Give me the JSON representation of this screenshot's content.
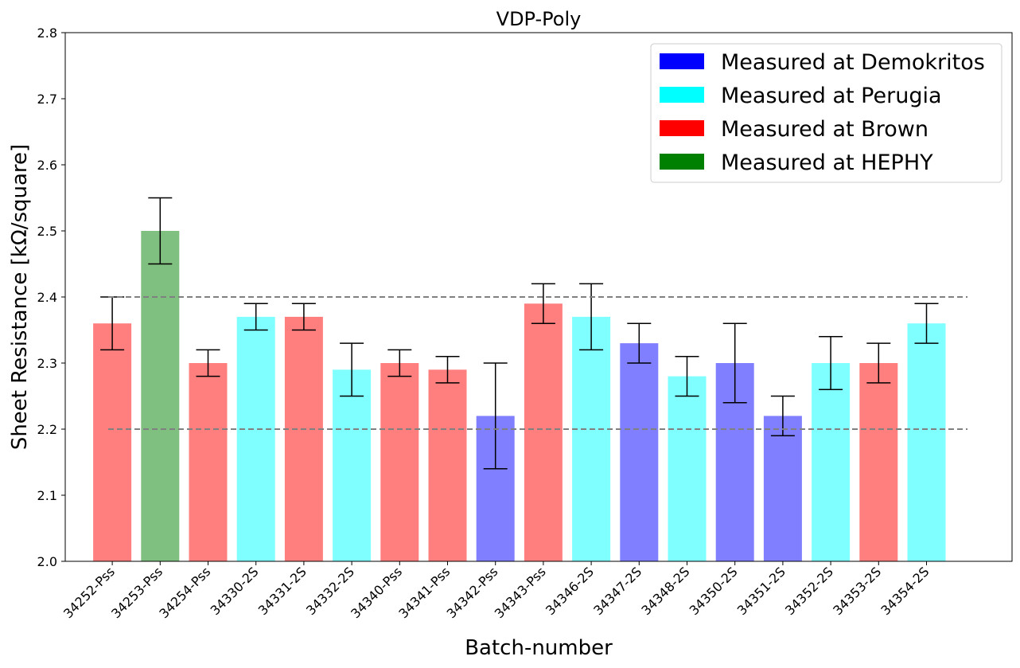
{
  "chart_data": {
    "type": "bar",
    "title": "VDP-Poly",
    "xlabel": "Batch-number",
    "ylabel": "Sheet Resistance [kΩ/square]",
    "ylim": [
      2.0,
      2.8
    ],
    "yticks": [
      "2.0",
      "2.1",
      "2.2",
      "2.3",
      "2.4",
      "2.5",
      "2.6",
      "2.7",
      "2.8"
    ],
    "categories": [
      "34252-Pss",
      "34253-Pss",
      "34254-Pss",
      "34330-2S",
      "34331-2S",
      "34332-2S",
      "34340-Pss",
      "34341-Pss",
      "34342-Pss",
      "34343-Pss",
      "34346-2S",
      "34347-2S",
      "34348-2S",
      "34350-2S",
      "34351-2S",
      "34352-2S",
      "34353-2S",
      "34354-2S"
    ],
    "values": [
      2.36,
      2.5,
      2.3,
      2.37,
      2.37,
      2.29,
      2.3,
      2.29,
      2.22,
      2.39,
      2.37,
      2.33,
      2.28,
      2.3,
      2.22,
      2.3,
      2.3,
      2.36
    ],
    "errors": [
      0.04,
      0.05,
      0.02,
      0.02,
      0.02,
      0.04,
      0.02,
      0.02,
      0.08,
      0.03,
      0.05,
      0.03,
      0.03,
      0.06,
      0.03,
      0.04,
      0.03,
      0.03
    ],
    "site": [
      "Brown",
      "HEPHY",
      "Brown",
      "Perugia",
      "Brown",
      "Perugia",
      "Brown",
      "Brown",
      "Demokritos",
      "Brown",
      "Perugia",
      "Demokritos",
      "Perugia",
      "Demokritos",
      "Demokritos",
      "Perugia",
      "Brown",
      "Perugia"
    ],
    "site_colors": {
      "Demokritos": "#0000ff",
      "Perugia": "#00ffff",
      "Brown": "#ff0000",
      "HEPHY": "#008000"
    },
    "bar_alpha": 0.5,
    "reference_lines": [
      2.2,
      2.4
    ],
    "reference_line_color": "#808080",
    "legend_placement": "top-right",
    "legend": [
      {
        "label": "Measured at Demokritos",
        "color": "#0000ff"
      },
      {
        "label": "Measured at Perugia",
        "color": "#00ffff"
      },
      {
        "label": "Measured at Brown",
        "color": "#ff0000"
      },
      {
        "label": "Measured at HEPHY",
        "color": "#008000"
      }
    ],
    "grid": false
  }
}
